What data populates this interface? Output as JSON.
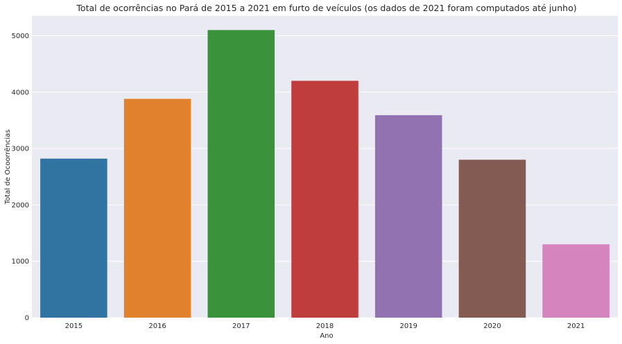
{
  "chart_data": {
    "type": "bar",
    "title": "Total de ocorrências no Pará de 2015 a 2021 em furto de veículos (os dados de 2021 foram computados até junho)",
    "xlabel": "Ano",
    "ylabel": "Total de Ocoorrências",
    "categories": [
      "2015",
      "2016",
      "2017",
      "2018",
      "2019",
      "2020",
      "2021"
    ],
    "values": [
      2820,
      3880,
      5100,
      4200,
      3590,
      2800,
      1300
    ],
    "colors": [
      "#3274a1",
      "#e1812c",
      "#3a923a",
      "#c03d3e",
      "#9372b2",
      "#845b53",
      "#d684bd"
    ],
    "ylim": [
      0,
      5350
    ],
    "yticks": [
      0,
      1000,
      2000,
      3000,
      4000,
      5000
    ],
    "grid": true,
    "background": "#eaeaf2",
    "grid_color": "#ffffff"
  }
}
